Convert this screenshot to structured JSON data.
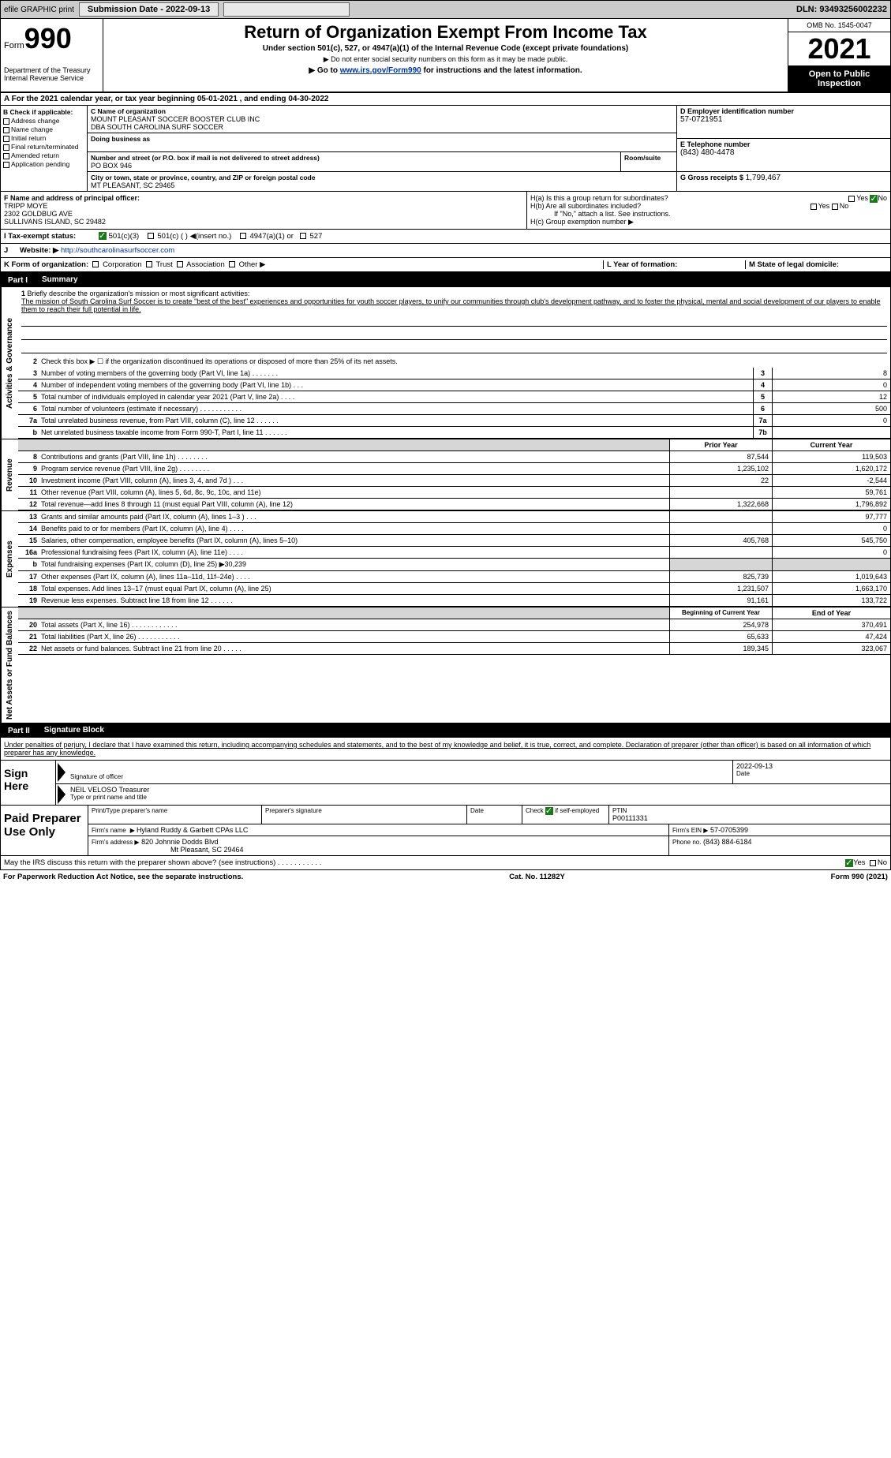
{
  "topbar": {
    "efile": "efile GRAPHIC print",
    "subdate_lbl": "Submission Date - 2022-09-13",
    "dln_lbl": "DLN: 93493256002232"
  },
  "header": {
    "form_prefix": "Form",
    "form_no": "990",
    "title": "Return of Organization Exempt From Income Tax",
    "sub1": "Under section 501(c), 527, or 4947(a)(1) of the Internal Revenue Code (except private foundations)",
    "sub2": "▶ Do not enter social security numbers on this form as it may be made public.",
    "sub3_a": "▶ Go to ",
    "sub3_link": "www.irs.gov/Form990",
    "sub3_b": " for instructions and the latest information.",
    "dept": "Department of the Treasury",
    "irs": "Internal Revenue Service",
    "omb": "OMB No. 1545-0047",
    "year": "2021",
    "open_pub": "Open to Public Inspection"
  },
  "a_line": "A For the 2021 calendar year, or tax year beginning 05-01-2021     , and ending 04-30-2022",
  "box_b": {
    "hdr": "B Check if applicable:",
    "opts": [
      "Address change",
      "Name change",
      "Initial return",
      "Final return/terminated",
      "Amended return",
      "Application pending"
    ]
  },
  "box_c": {
    "name_hdr": "C Name of organization",
    "name1": "MOUNT PLEASANT SOCCER BOOSTER CLUB INC",
    "name2": "DBA SOUTH CAROLINA SURF SOCCER",
    "dba_hdr": "Doing business as",
    "street_hdr": "Number and street (or P.O. box if mail is not delivered to street address)",
    "room_hdr": "Room/suite",
    "street": "PO BOX 946",
    "city_hdr": "City or town, state or province, country, and ZIP or foreign postal code",
    "city": "MT PLEASANT, SC  29465"
  },
  "box_d": {
    "hdr": "D Employer identification number",
    "val": "57-0721951"
  },
  "box_e": {
    "hdr": "E Telephone number",
    "val": "(843) 480-4478"
  },
  "box_g": {
    "hdr": "G Gross receipts $",
    "val": "1,799,467"
  },
  "box_f": {
    "hdr": "F  Name and address of principal officer:",
    "l1": "TRIPP MOYE",
    "l2": "2302 GOLDBUG AVE",
    "l3": "SULLIVANS ISLAND, SC  29482"
  },
  "box_h": {
    "a": "H(a)  Is this a group return for subordinates?",
    "b": "H(b)  Are all subordinates included?",
    "b2": "If \"No,\" attach a list. See instructions.",
    "c": "H(c)  Group exemption number ▶",
    "yes": "Yes",
    "no": "No"
  },
  "row_i": {
    "lbl": "I  Tax-exempt status:",
    "o1": "501(c)(3)",
    "o2": "501(c) (  ) ◀(insert no.)",
    "o3": "4947(a)(1) or",
    "o4": "527"
  },
  "row_j": {
    "lbl": "J",
    "web": "Website: ▶",
    "url": "http://southcarolinasurfsoccer.com"
  },
  "row_k": {
    "lbl": "K Form of organization:",
    "opts": [
      "Corporation",
      "Trust",
      "Association",
      "Other ▶"
    ],
    "l1": "L Year of formation:",
    "m1": "M State of legal domicile:"
  },
  "parts": {
    "p1": "Part I",
    "p1t": "Summary",
    "p2": "Part II",
    "p2t": "Signature Block"
  },
  "tabs": {
    "gov": "Activities & Governance",
    "rev": "Revenue",
    "exp": "Expenses",
    "net": "Net Assets or Fund Balances"
  },
  "summary": {
    "l1": "Briefly describe the organization's mission or most significant activities:",
    "mission": "The mission of South Carolina Surf Soccer is to create \"best of the best\" experiences and opportunities for youth soccer players, to unify our communities through club's development pathway, and to foster the physical, mental and social development of our players to enable them to reach their full potential in life.",
    "l2": "Check this box ▶ ☐ if the organization discontinued its operations or disposed of more than 25% of its net assets.",
    "rows": [
      {
        "n": "3",
        "t": "Number of voting members of the governing body (Part VI, line 1a)  .   .   .   .   .   .   .",
        "b": "3",
        "v": "8"
      },
      {
        "n": "4",
        "t": "Number of independent voting members of the governing body (Part VI, line 1b)   .   .   .",
        "b": "4",
        "v": "0"
      },
      {
        "n": "5",
        "t": "Total number of individuals employed in calendar year 2021 (Part V, line 2a)   .   .   .   .",
        "b": "5",
        "v": "12"
      },
      {
        "n": "6",
        "t": "Total number of volunteers (estimate if necessary)   .   .   .   .   .   .   .   .   .   .   .",
        "b": "6",
        "v": "500"
      },
      {
        "n": "7a",
        "t": "Total unrelated business revenue, from Part VIII, column (C), line 12   .   .   .   .   .   .",
        "b": "7a",
        "v": "0"
      },
      {
        "n": "b",
        "t": "Net unrelated business taxable income from Form 990-T, Part I, line 11   .   .   .   .   .   .",
        "b": "7b",
        "v": ""
      }
    ],
    "col_prior": "Prior Year",
    "col_curr": "Current Year",
    "rev_rows": [
      {
        "n": "8",
        "t": "Contributions and grants (Part VIII, line 1h)   .   .   .   .   .   .   .   .",
        "p": "87,544",
        "c": "119,503"
      },
      {
        "n": "9",
        "t": "Program service revenue (Part VIII, line 2g)   .   .   .   .   .   .   .   .",
        "p": "1,235,102",
        "c": "1,620,172"
      },
      {
        "n": "10",
        "t": "Investment income (Part VIII, column (A), lines 3, 4, and 7d )   .   .   .",
        "p": "22",
        "c": "-2,544"
      },
      {
        "n": "11",
        "t": "Other revenue (Part VIII, column (A), lines 5, 6d, 8c, 9c, 10c, and 11e)",
        "p": "",
        "c": "59,761"
      },
      {
        "n": "12",
        "t": "Total revenue—add lines 8 through 11 (must equal Part VIII, column (A), line 12)",
        "p": "1,322,668",
        "c": "1,796,892"
      }
    ],
    "exp_rows": [
      {
        "n": "13",
        "t": "Grants and similar amounts paid (Part IX, column (A), lines 1–3 )   .   .   .",
        "p": "",
        "c": "97,777"
      },
      {
        "n": "14",
        "t": "Benefits paid to or for members (Part IX, column (A), line 4)   .   .   .   .",
        "p": "",
        "c": "0"
      },
      {
        "n": "15",
        "t": "Salaries, other compensation, employee benefits (Part IX, column (A), lines 5–10)",
        "p": "405,768",
        "c": "545,750"
      },
      {
        "n": "16a",
        "t": "Professional fundraising fees (Part IX, column (A), line 11e)   .   .   .   .",
        "p": "",
        "c": "0"
      },
      {
        "n": "b",
        "t": "Total fundraising expenses (Part IX, column (D), line 25) ▶30,239",
        "p": "GREY",
        "c": "GREY"
      },
      {
        "n": "17",
        "t": "Other expenses (Part IX, column (A), lines 11a–11d, 11f–24e)   .   .   .   .",
        "p": "825,739",
        "c": "1,019,643"
      },
      {
        "n": "18",
        "t": "Total expenses. Add lines 13–17 (must equal Part IX, column (A), line 25)",
        "p": "1,231,507",
        "c": "1,663,170"
      },
      {
        "n": "19",
        "t": "Revenue less expenses. Subtract line 18 from line 12   .   .   .   .   .   .",
        "p": "91,161",
        "c": "133,722"
      }
    ],
    "col_beg": "Beginning of Current Year",
    "col_end": "End of Year",
    "net_rows": [
      {
        "n": "20",
        "t": "Total assets (Part X, line 16)   .   .   .   .   .   .   .   .   .   .   .   .",
        "p": "254,978",
        "c": "370,491"
      },
      {
        "n": "21",
        "t": "Total liabilities (Part X, line 26)   .   .   .   .   .   .   .   .   .   .   .",
        "p": "65,633",
        "c": "47,424"
      },
      {
        "n": "22",
        "t": "Net assets or fund balances. Subtract line 21 from line 20   .   .   .   .   .",
        "p": "189,345",
        "c": "323,067"
      }
    ]
  },
  "sig": {
    "decl": "Under penalties of perjury, I declare that I have examined this return, including accompanying schedules and statements, and to the best of my knowledge and belief, it is true, correct, and complete. Declaration of preparer (other than officer) is based on all information of which preparer has any knowledge.",
    "sign_here": "Sign Here",
    "sig_off": "Signature of officer",
    "date": "Date",
    "date_val": "2022-09-13",
    "name": "NEIL VELOSO  Treasurer",
    "name_lbl": "Type or print name and title"
  },
  "prep": {
    "hdr": "Paid Preparer Use Only",
    "c1": "Print/Type preparer's name",
    "c2": "Preparer's signature",
    "c3": "Date",
    "c4a": "Check",
    "c4b": "if self-employed",
    "c5": "PTIN",
    "ptin": "P00111331",
    "firm_lbl": "Firm's name",
    "firm": "Hyland Ruddy & Garbett CPAs LLC",
    "ein_lbl": "Firm's EIN ▶",
    "ein": "57-0705399",
    "addr_lbl": "Firm's address ▶",
    "addr1": "820 Johnnie Dodds Blvd",
    "addr2": "Mt Pleasant, SC  29464",
    "phone_lbl": "Phone no.",
    "phone": "(843) 884-6184"
  },
  "footer": {
    "may": "May the IRS discuss this return with the preparer shown above? (see instructions)   .   .   .   .   .   .   .   .   .   .   .",
    "yes": "Yes",
    "no": "No",
    "pra": "For Paperwork Reduction Act Notice, see the separate instructions.",
    "cat": "Cat. No. 11282Y",
    "form": "Form 990 (2021)"
  },
  "colors": {
    "bg": "#ffffff",
    "grey": "#d6d6d6",
    "black": "#000000",
    "link": "#003399",
    "check": "#1a7a1a"
  }
}
